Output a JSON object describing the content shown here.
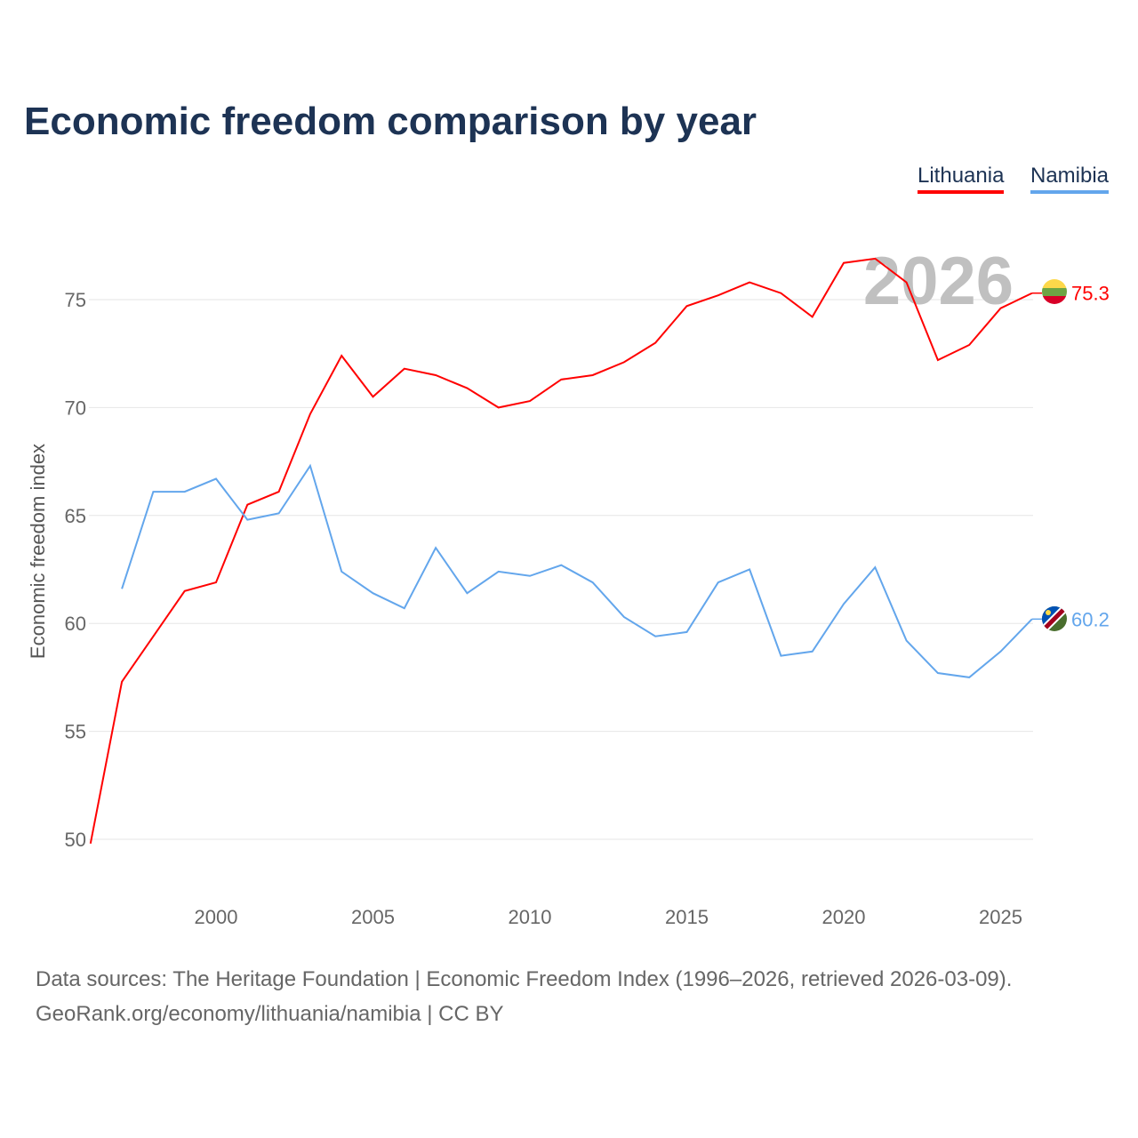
{
  "chart_data": {
    "type": "line",
    "title": "Economic freedom comparison by year",
    "xlabel": "",
    "ylabel": "Economic freedom index",
    "xlim": [
      1996,
      2026
    ],
    "ylim": [
      48.5,
      78
    ],
    "yticks": [
      50,
      55,
      60,
      65,
      70,
      75
    ],
    "xticks": [
      2000,
      2005,
      2010,
      2015,
      2020,
      2025
    ],
    "grid": true,
    "legend": "top-right",
    "year_watermark": "2026",
    "series": [
      {
        "name": "Lithuania",
        "color": "#ff0000",
        "end_label": "75.3",
        "x": [
          1996,
          1997,
          1998,
          1999,
          2000,
          2001,
          2002,
          2003,
          2004,
          2005,
          2006,
          2007,
          2008,
          2009,
          2010,
          2011,
          2012,
          2013,
          2014,
          2015,
          2016,
          2017,
          2018,
          2019,
          2020,
          2021,
          2022,
          2023,
          2024,
          2025,
          2026
        ],
        "values": [
          49.8,
          57.3,
          59.4,
          61.5,
          61.9,
          65.5,
          66.1,
          69.7,
          72.4,
          70.5,
          71.8,
          71.5,
          70.9,
          70.0,
          70.3,
          71.3,
          71.5,
          72.1,
          73.0,
          74.7,
          75.2,
          75.8,
          75.3,
          74.2,
          76.7,
          76.9,
          75.8,
          72.2,
          72.9,
          74.6,
          75.3
        ]
      },
      {
        "name": "Namibia",
        "color": "#63a6ec",
        "end_label": "60.2",
        "x": [
          1997,
          1998,
          1999,
          2000,
          2001,
          2002,
          2003,
          2004,
          2005,
          2006,
          2007,
          2008,
          2009,
          2010,
          2011,
          2012,
          2013,
          2014,
          2015,
          2016,
          2017,
          2018,
          2019,
          2020,
          2021,
          2022,
          2023,
          2024,
          2025,
          2026
        ],
        "values": [
          61.6,
          66.1,
          66.1,
          66.7,
          64.8,
          65.1,
          67.3,
          62.4,
          61.4,
          60.7,
          63.5,
          61.4,
          62.4,
          62.2,
          62.7,
          61.9,
          60.3,
          59.4,
          59.6,
          61.9,
          62.5,
          58.5,
          58.7,
          60.9,
          62.6,
          59.2,
          57.7,
          57.5,
          58.7,
          60.2
        ]
      }
    ]
  },
  "footer": {
    "line1": "Data sources: The Heritage Foundation | Economic Freedom Index (1996–2026, retrieved 2026-03-09).",
    "line2": "GeoRank.org/economy/lithuania/namibia | CC BY"
  }
}
